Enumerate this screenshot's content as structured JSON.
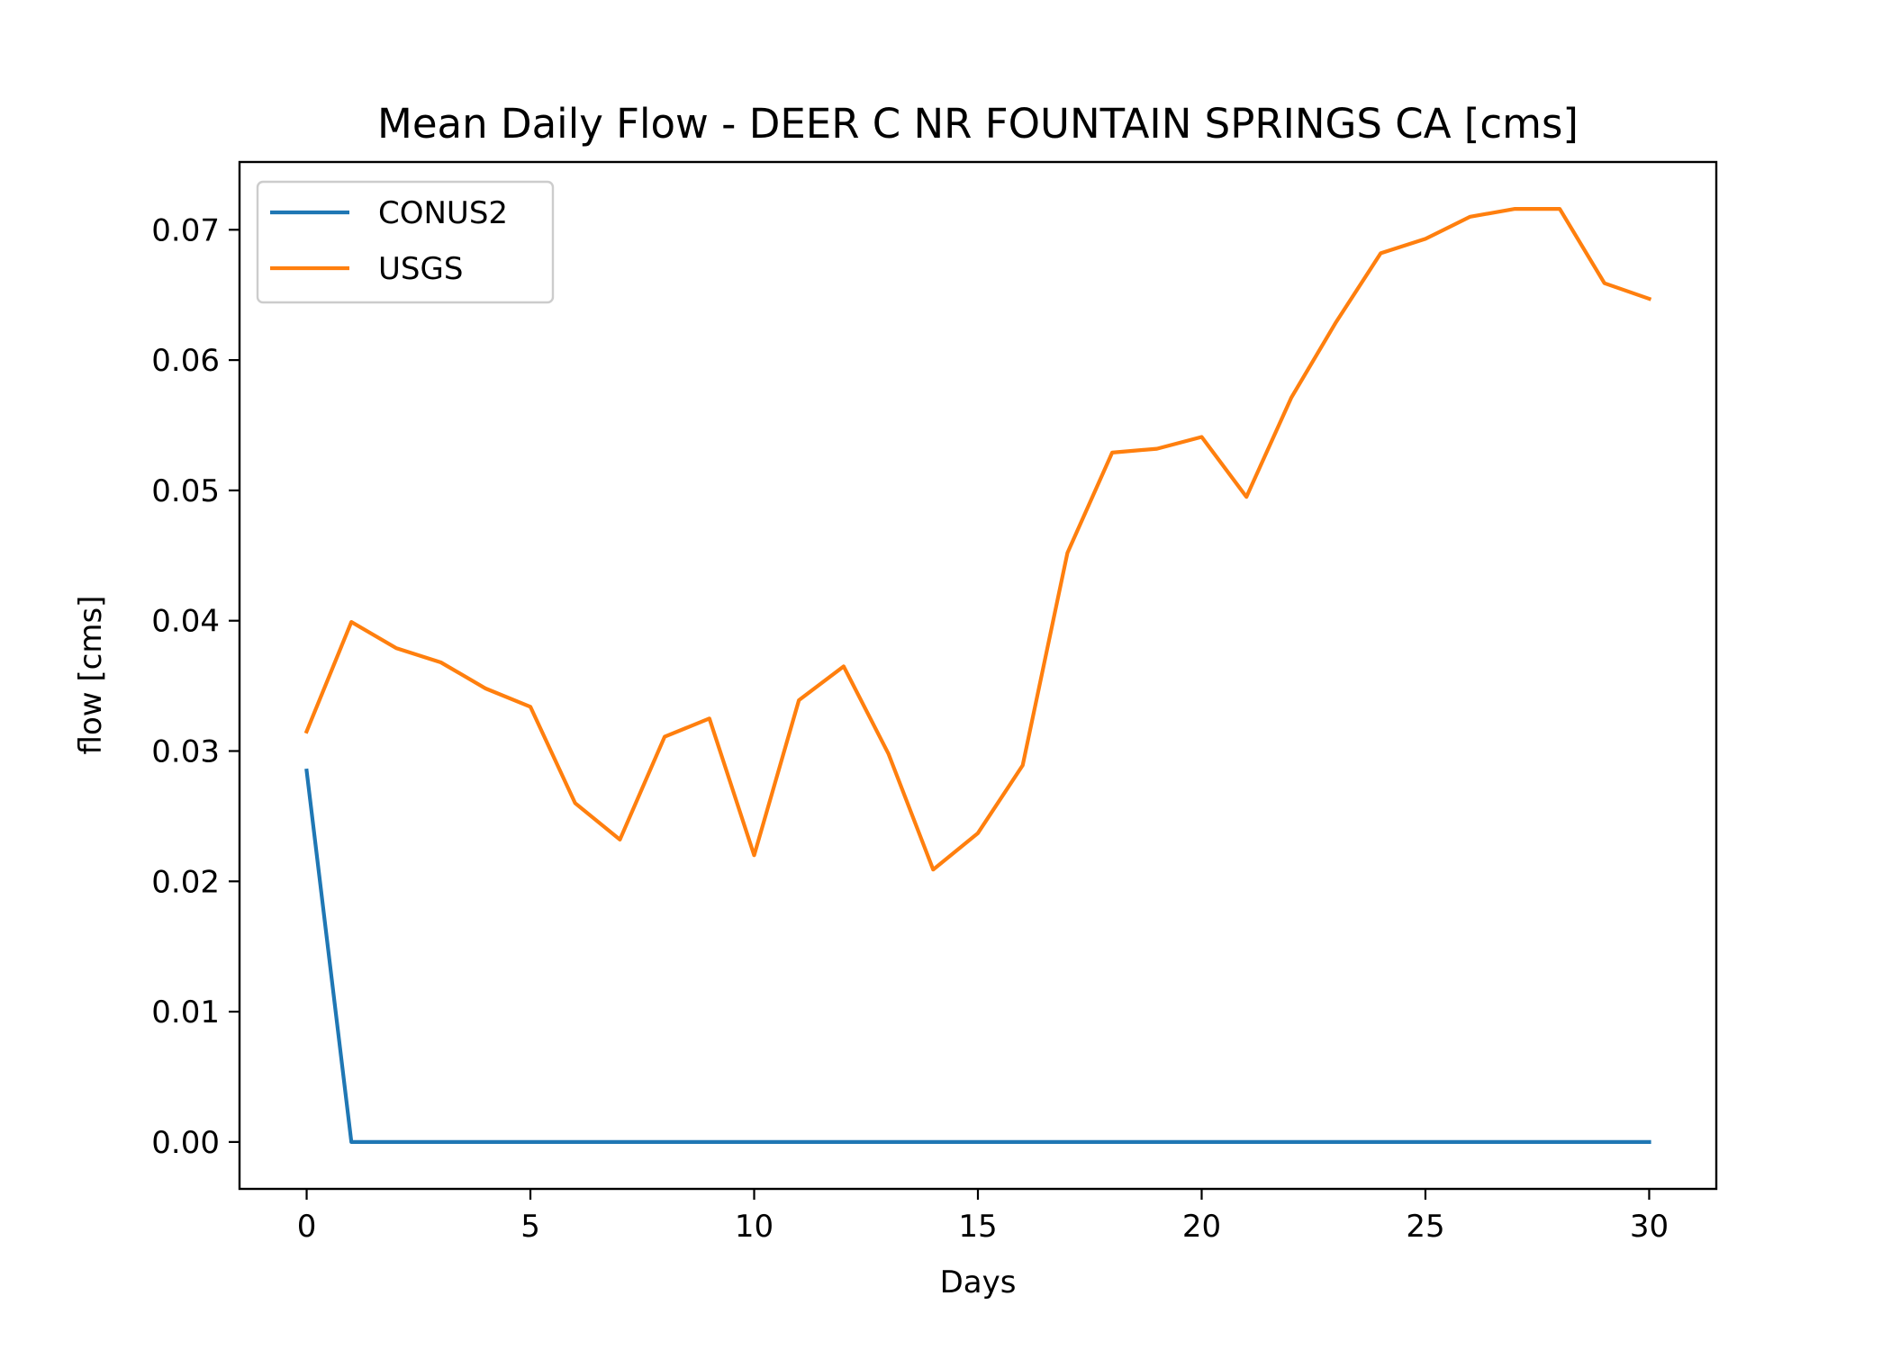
{
  "chart_data": {
    "type": "line",
    "title": "Mean Daily Flow - DEER C NR FOUNTAIN SPRINGS CA [cms]",
    "xlabel": "Days",
    "ylabel": "flow [cms]",
    "xlim": [
      -1.5,
      31.5
    ],
    "ylim": [
      -0.0036,
      0.0752
    ],
    "xticks": [
      0,
      5,
      10,
      15,
      20,
      25,
      30
    ],
    "xtick_labels": [
      "0",
      "5",
      "10",
      "15",
      "20",
      "25",
      "30"
    ],
    "yticks": [
      0.0,
      0.01,
      0.02,
      0.03,
      0.04,
      0.05,
      0.06,
      0.07
    ],
    "ytick_labels": [
      "0.00",
      "0.01",
      "0.02",
      "0.03",
      "0.04",
      "0.05",
      "0.06",
      "0.07"
    ],
    "grid": false,
    "legend_position": "top-left",
    "x": [
      0,
      1,
      2,
      3,
      4,
      5,
      6,
      7,
      8,
      9,
      10,
      11,
      12,
      13,
      14,
      15,
      16,
      17,
      18,
      19,
      20,
      21,
      22,
      23,
      24,
      25,
      26,
      27,
      28,
      29,
      30
    ],
    "series": [
      {
        "name": "CONUS2",
        "color": "#1f77b4",
        "values": [
          0.0285,
          0,
          0,
          0,
          0,
          0,
          0,
          0,
          0,
          0,
          0,
          0,
          0,
          0,
          0,
          0,
          0,
          0,
          0,
          0,
          0,
          0,
          0,
          0,
          0,
          0,
          0,
          0,
          0,
          0,
          0
        ]
      },
      {
        "name": "USGS",
        "color": "#ff7f0e",
        "values": [
          0.0315,
          0.0399,
          0.0379,
          0.0368,
          0.0348,
          0.0334,
          0.026,
          0.0232,
          0.0311,
          0.0325,
          0.022,
          0.0339,
          0.0365,
          0.0298,
          0.0209,
          0.0237,
          0.0289,
          0.0452,
          0.0529,
          0.0532,
          0.0541,
          0.0495,
          0.0571,
          0.0629,
          0.0682,
          0.0693,
          0.071,
          0.0716,
          0.0716,
          0.0659,
          0.0647
        ]
      }
    ]
  }
}
